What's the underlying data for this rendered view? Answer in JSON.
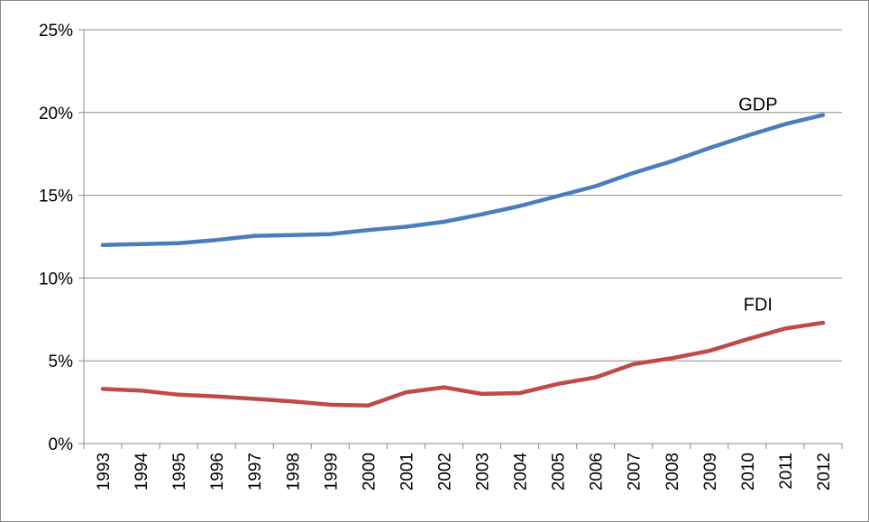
{
  "chart_data": {
    "type": "line",
    "title": "",
    "xlabel": "",
    "ylabel": "",
    "categories": [
      "1993",
      "1994",
      "1995",
      "1996",
      "1997",
      "1998",
      "1999",
      "2000",
      "2001",
      "2002",
      "2003",
      "2004",
      "2005",
      "2006",
      "2007",
      "2008",
      "2009",
      "2010",
      "2011",
      "2012"
    ],
    "y_ticks": [
      "0%",
      "5%",
      "10%",
      "15%",
      "20%",
      "25%"
    ],
    "ylim": [
      0,
      25
    ],
    "grid": "horizontal",
    "legend": "none",
    "series": [
      {
        "name": "GDP",
        "color": "#4a7ebb",
        "values": [
          12.0,
          12.05,
          12.1,
          12.3,
          12.55,
          12.6,
          12.65,
          12.9,
          13.1,
          13.4,
          13.85,
          14.35,
          14.95,
          15.55,
          16.35,
          17.05,
          17.85,
          18.6,
          19.3,
          19.85
        ]
      },
      {
        "name": "FDI",
        "color": "#be4b48",
        "values": [
          3.3,
          3.2,
          2.95,
          2.85,
          2.7,
          2.55,
          2.35,
          2.3,
          3.1,
          3.4,
          3.0,
          3.05,
          3.6,
          4.0,
          4.8,
          5.15,
          5.6,
          6.3,
          6.95,
          7.3
        ]
      }
    ]
  }
}
